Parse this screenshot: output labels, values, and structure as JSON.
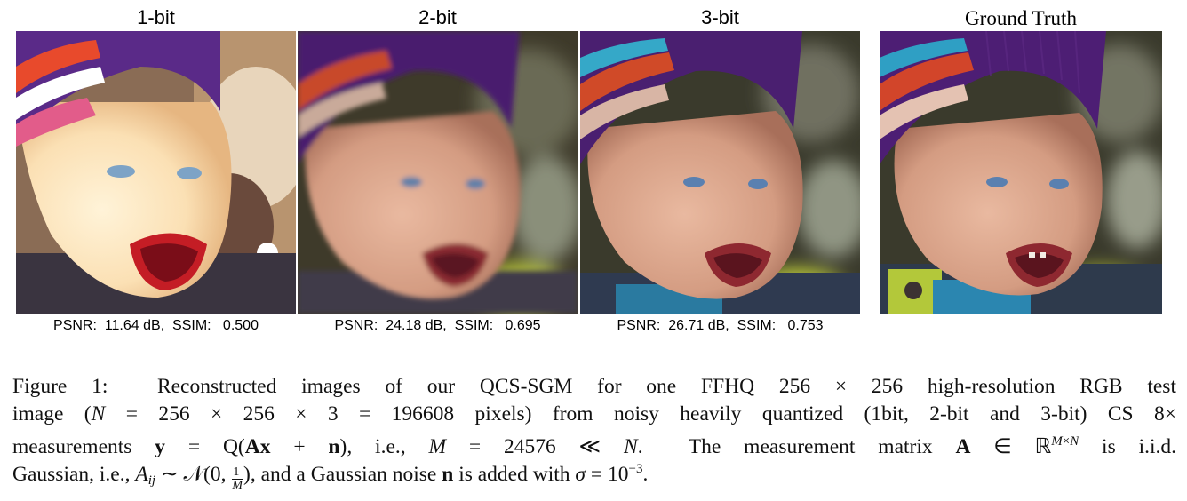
{
  "panels": [
    {
      "title": "1-bit",
      "metric": "PSNR:  11.64 dB,  SSIM:   0.500"
    },
    {
      "title": "2-bit",
      "metric": "PSNR:  24.18 dB,  SSIM:   0.695"
    },
    {
      "title": "3-bit",
      "metric": "PSNR:  26.71 dB,  SSIM:   0.753"
    },
    {
      "title": "Ground Truth",
      "metric": ""
    }
  ],
  "caption": {
    "label": "Figure 1:",
    "line1": "Reconstructed images of our QCS-SGM for one FFHQ 256 × 256 high-resolution RGB test",
    "line2": "image (N = 256 × 256 × 3 = 196608 pixels) from noisy heavily quantized (1bit, 2-bit and 3-bit) CS 8×",
    "line3": "measurements y = Q(Ax + n), i.e., M = 24576 ≪ N.  The measurement matrix A ∈ ℝ^{M×N} is i.i.d.",
    "line4": "Gaussian, i.e., A_{ij} ∼ 𝒩(0, 1/M), and a Gaussian noise n is added with σ = 10^{−3}."
  }
}
